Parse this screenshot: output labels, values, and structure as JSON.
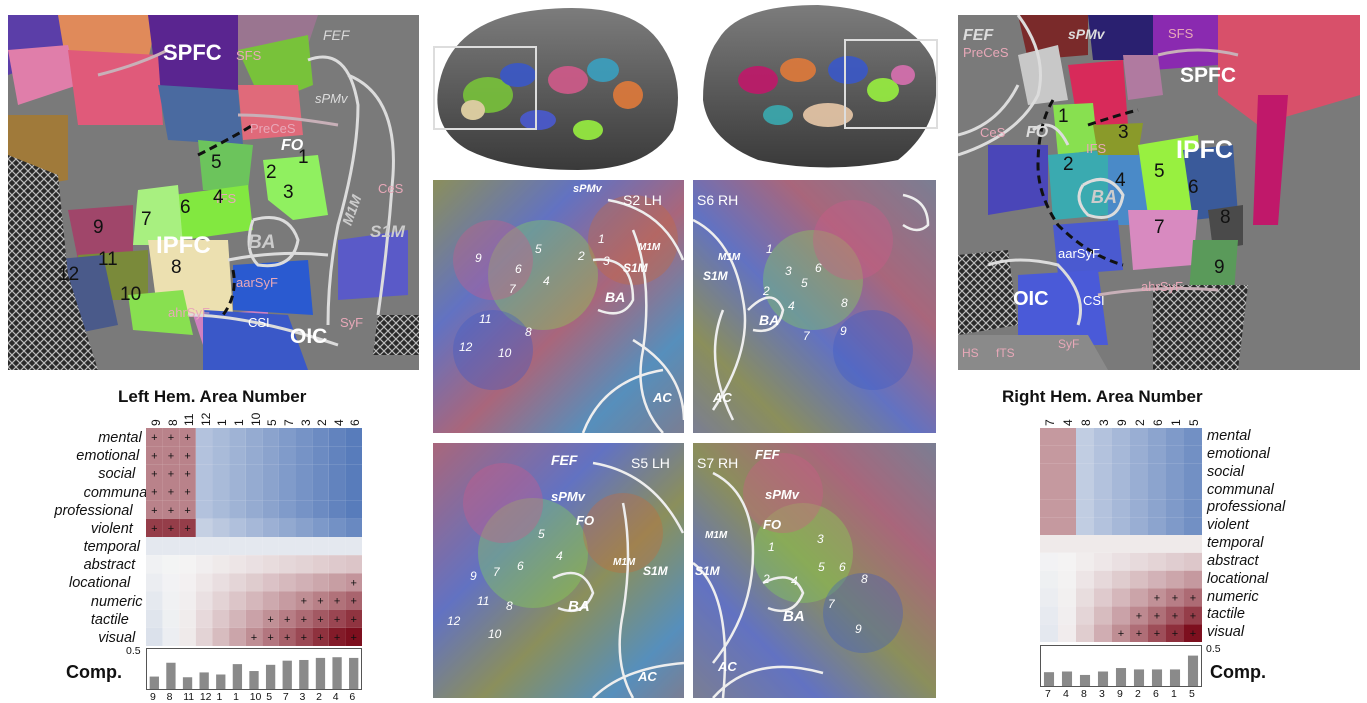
{
  "left_map": {
    "labels": {
      "spfc": "SPFC",
      "sfs": "SFS",
      "fef": "FEF",
      "precess": "PreCeS",
      "spmv": "sPMv",
      "fo": "FO",
      "ifs": "IFS",
      "ipfc": "IPFC",
      "ba": "BA",
      "m1m": "M1M",
      "ces": "CeS",
      "s1m": "S1M",
      "aarsyf": "aarSyF",
      "ahrsyf": "ahrSyF",
      "csi": "CSI",
      "oic": "OIC",
      "syf": "SyF"
    },
    "areas": [
      "1",
      "2",
      "3",
      "4",
      "5",
      "6",
      "7",
      "8",
      "9",
      "10",
      "11",
      "12"
    ]
  },
  "right_map": {
    "labels": {
      "fef": "FEF",
      "precess": "PreCeS",
      "spmv": "sPMv",
      "sfs": "SFS",
      "spfc": "SPFC",
      "ces": "CeS",
      "fo": "FO",
      "ifs": "IFS",
      "ipfc": "IPFC",
      "ba": "BA",
      "aarsyf": "aarSyF",
      "oic": "OIC",
      "csi": "CSI",
      "ahrsyf": "ahrSyF",
      "hs": "HS",
      "fts": "fTS",
      "syf": "SyF"
    },
    "areas": [
      "1",
      "2",
      "3",
      "4",
      "5",
      "6",
      "7",
      "8",
      "9"
    ]
  },
  "center": {
    "panels": [
      {
        "subject": "S2 LH",
        "labels": {
          "spmv": "sPMv",
          "m1m": "M1M",
          "s1m": "S1M",
          "ba": "BA",
          "ac": "AC"
        },
        "areas": [
          "9",
          "6",
          "5",
          "4",
          "3",
          "2",
          "1",
          "7",
          "8",
          "11",
          "12",
          "10"
        ]
      },
      {
        "subject": "S6 RH",
        "labels": {
          "m1m": "M1M",
          "s1m": "S1M",
          "ba": "BA",
          "ac": "AC"
        },
        "areas": [
          "2",
          "3",
          "6",
          "5",
          "1",
          "4",
          "8",
          "7",
          "9"
        ]
      },
      {
        "subject": "S5 LH",
        "labels": {
          "fef": "FEF",
          "spmv": "sPMv",
          "fo": "FO",
          "m1m": "M1M",
          "s1m": "S1M",
          "ba": "BA",
          "ac": "AC"
        },
        "areas": [
          "9",
          "7",
          "6",
          "5",
          "4",
          "11",
          "8",
          "12",
          "10"
        ]
      },
      {
        "subject": "S7 RH",
        "labels": {
          "fef": "FEF",
          "spmv": "sPMv",
          "fo": "FO",
          "m1m": "M1M",
          "s1m": "S1M",
          "ba": "BA",
          "ac": "AC"
        },
        "areas": [
          "1",
          "3",
          "2",
          "4",
          "5",
          "6",
          "8",
          "7",
          "9"
        ]
      }
    ]
  },
  "left_heatmap": {
    "title": "Left Hem. Area Number",
    "columns": [
      "9",
      "8",
      "11",
      "12",
      "1",
      "1",
      "10",
      "5",
      "7",
      "3",
      "2",
      "4",
      "6"
    ],
    "rows": [
      "mental",
      "emotional",
      "social",
      "communal",
      "professional",
      "violent",
      "temporal",
      "abstract",
      "locational",
      "numeric",
      "tactile",
      "visual"
    ],
    "comp_label": "Comp.",
    "comp_scale_tick": "0.5",
    "comp_values": [
      0.18,
      0.38,
      0.17,
      0.24,
      0.21,
      0.36,
      0.26,
      0.35,
      0.41,
      0.42,
      0.45,
      0.46,
      0.45
    ]
  },
  "right_heatmap": {
    "title": "Right Hem. Area Number",
    "columns": [
      "7",
      "4",
      "8",
      "3",
      "9",
      "2",
      "6",
      "1",
      "5"
    ],
    "rows": [
      "mental",
      "emotional",
      "social",
      "communal",
      "professional",
      "violent",
      "temporal",
      "abstract",
      "locational",
      "numeric",
      "tactile",
      "visual"
    ],
    "comp_label": "Comp.",
    "comp_scale_tick": "0.5",
    "comp_values": [
      0.2,
      0.21,
      0.16,
      0.21,
      0.26,
      0.24,
      0.24,
      0.24,
      0.44
    ]
  }
}
